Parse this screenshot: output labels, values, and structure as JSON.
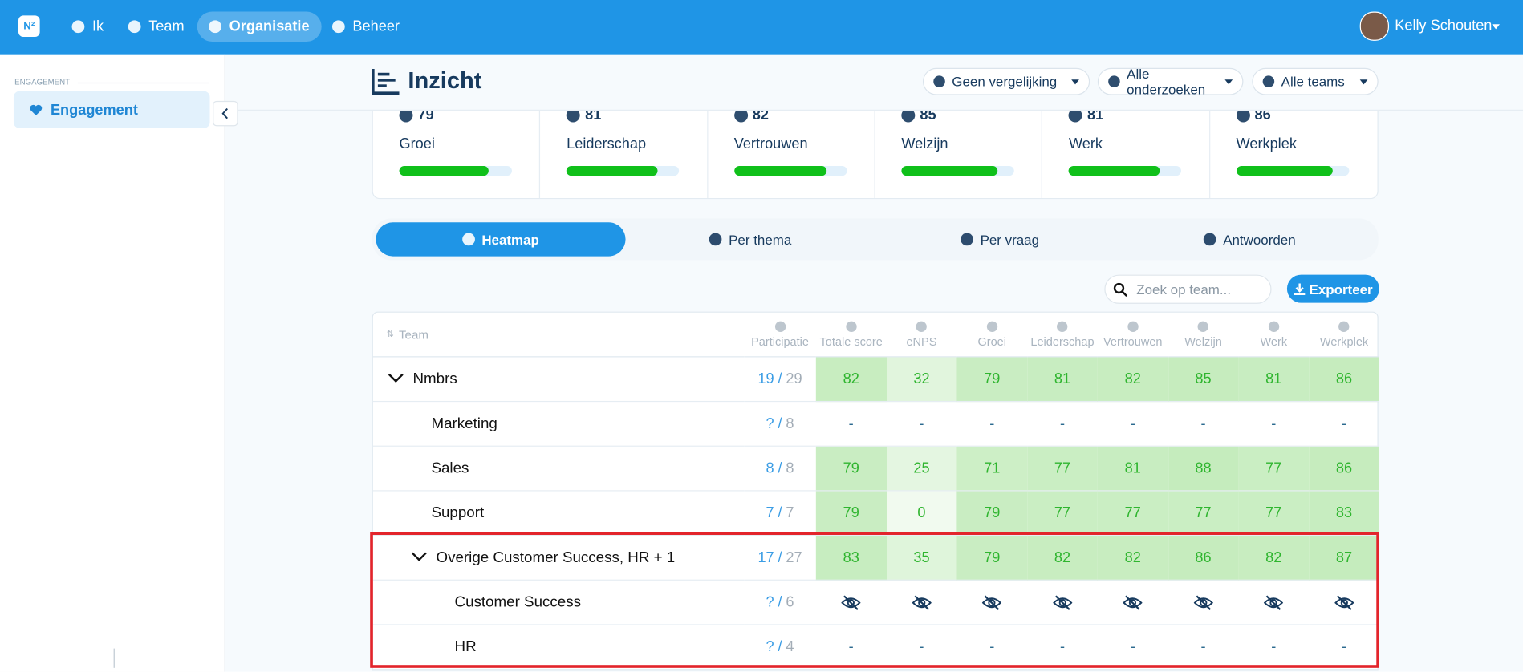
{
  "nav": {
    "logo": "N²",
    "items": [
      "Ik",
      "Team",
      "Organisatie",
      "Beheer"
    ],
    "active": 2,
    "user": "Kelly Schouten"
  },
  "sidebar": {
    "section": "ENGAGEMENT",
    "item": "Engagement"
  },
  "header": {
    "title": "Inzicht",
    "selects": [
      "Geen vergelijking",
      "Alle onderzoeken",
      "Alle teams"
    ]
  },
  "scores": [
    {
      "value": 79,
      "label": "Groei"
    },
    {
      "value": 81,
      "label": "Leiderschap"
    },
    {
      "value": 82,
      "label": "Vertrouwen"
    },
    {
      "value": 85,
      "label": "Welzijn"
    },
    {
      "value": 81,
      "label": "Werk"
    },
    {
      "value": 86,
      "label": "Werkplek"
    }
  ],
  "tabs": {
    "items": [
      "Heatmap",
      "Per thema",
      "Per vraag",
      "Antwoorden"
    ],
    "active": 0
  },
  "search_placeholder": "Zoek op team...",
  "export": "Exporteer",
  "table": {
    "team_header": "Team",
    "columns": [
      "Participatie",
      "Totale score",
      "eNPS",
      "Groei",
      "Leiderschap",
      "Vertrouwen",
      "Welzijn",
      "Werk",
      "Werkplek"
    ],
    "separator": "/",
    "rows": [
      {
        "name": "Nmbrs",
        "level": 0,
        "expandable": true,
        "participation": [
          19,
          29
        ],
        "cells": [
          82,
          32,
          79,
          81,
          82,
          85,
          81,
          86
        ]
      },
      {
        "name": "Marketing",
        "level": 1,
        "expandable": false,
        "participation": [
          "?",
          8
        ],
        "cells": [
          "-",
          "-",
          "-",
          "-",
          "-",
          "-",
          "-",
          "-"
        ]
      },
      {
        "name": "Sales",
        "level": 1,
        "expandable": false,
        "participation": [
          8,
          8
        ],
        "cells": [
          79,
          25,
          71,
          77,
          81,
          88,
          77,
          86
        ]
      },
      {
        "name": "Support",
        "level": 1,
        "expandable": false,
        "participation": [
          7,
          7
        ],
        "cells": [
          79,
          0,
          79,
          77,
          77,
          77,
          77,
          83
        ]
      },
      {
        "name": "Overige Customer Success, HR + 1",
        "level": 1,
        "expandable": true,
        "participation": [
          17,
          27
        ],
        "cells": [
          83,
          35,
          79,
          82,
          82,
          86,
          82,
          87
        ]
      },
      {
        "name": "Customer Success",
        "level": 2,
        "expandable": false,
        "participation": [
          "?",
          6
        ],
        "cells": [
          null,
          null,
          null,
          null,
          null,
          null,
          null,
          null
        ]
      },
      {
        "name": "HR",
        "level": 2,
        "expandable": false,
        "participation": [
          "?",
          4
        ],
        "cells": [
          "-",
          "-",
          "-",
          "-",
          "-",
          "-",
          "-",
          "-"
        ]
      }
    ]
  }
}
